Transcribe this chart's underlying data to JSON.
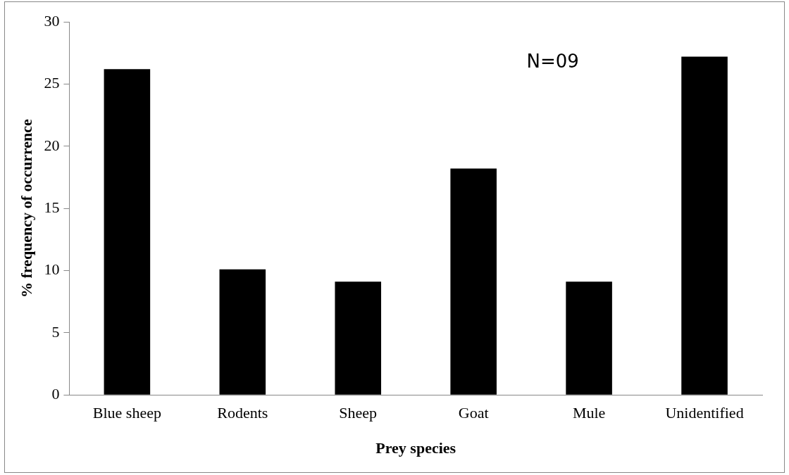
{
  "chart_data": {
    "type": "bar",
    "xlabel": "Prey species",
    "ylabel": "% frequency of occurrence",
    "categories": [
      "Blue sheep",
      "Rodents",
      "Sheep",
      "Goat",
      "Mule",
      "Unidentified"
    ],
    "values": [
      26.2,
      10.1,
      9.1,
      18.2,
      9.1,
      27.2
    ],
    "color": "#000000",
    "ylim": [
      0,
      30
    ],
    "yticks": [
      0,
      5,
      10,
      15,
      20,
      25,
      30
    ],
    "grid": false,
    "legend": false,
    "annotations": [
      "N=09"
    ]
  }
}
